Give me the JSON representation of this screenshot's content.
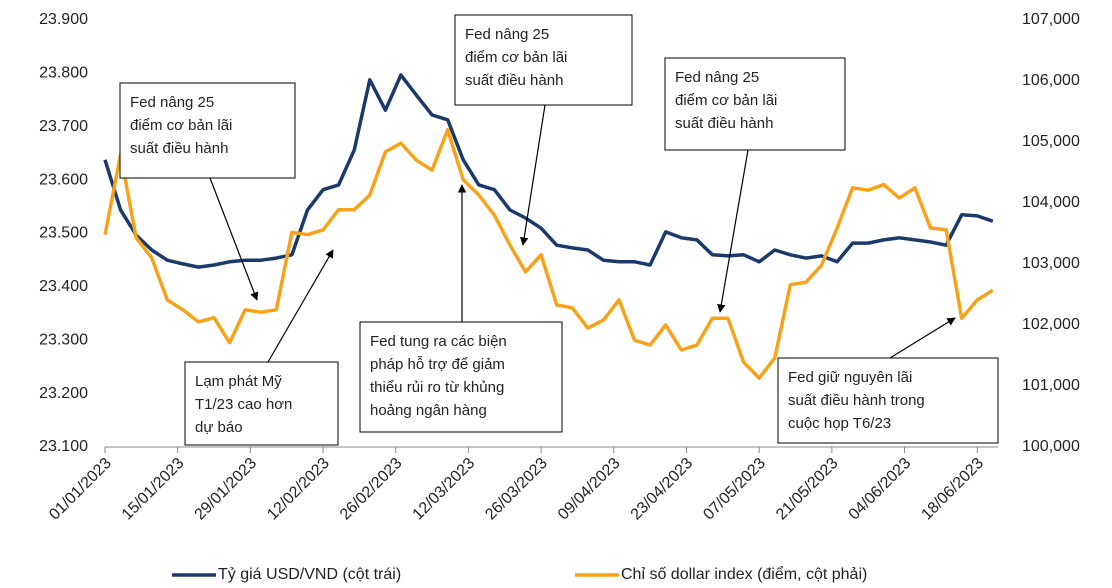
{
  "chart_data": {
    "type": "line",
    "x": [
      "2023-01-01",
      "2023-01-04",
      "2023-01-07",
      "2023-01-10",
      "2023-01-13",
      "2023-01-16",
      "2023-01-19",
      "2023-01-22",
      "2023-01-25",
      "2023-01-28",
      "2023-01-31",
      "2023-02-03",
      "2023-02-06",
      "2023-02-09",
      "2023-02-12",
      "2023-02-15",
      "2023-02-18",
      "2023-02-21",
      "2023-02-24",
      "2023-02-27",
      "2023-03-02",
      "2023-03-05",
      "2023-03-08",
      "2023-03-11",
      "2023-03-14",
      "2023-03-17",
      "2023-03-20",
      "2023-03-23",
      "2023-03-26",
      "2023-03-29",
      "2023-04-01",
      "2023-04-04",
      "2023-04-07",
      "2023-04-10",
      "2023-04-13",
      "2023-04-16",
      "2023-04-19",
      "2023-04-22",
      "2023-04-25",
      "2023-04-28",
      "2023-05-01",
      "2023-05-04",
      "2023-05-07",
      "2023-05-10",
      "2023-05-13",
      "2023-05-16",
      "2023-05-19",
      "2023-05-22",
      "2023-05-25",
      "2023-05-28",
      "2023-05-31",
      "2023-06-03",
      "2023-06-06",
      "2023-06-09",
      "2023-06-12",
      "2023-06-15",
      "2023-06-18",
      "2023-06-21"
    ],
    "series": [
      {
        "name": "Tỷ giá USD/VND (cột trái)",
        "color": "#1b3a6b",
        "axis": "y",
        "values": [
          23.638,
          23.544,
          23.497,
          23.469,
          23.45,
          23.443,
          23.437,
          23.441,
          23.447,
          23.45,
          23.45,
          23.454,
          23.46,
          23.544,
          23.582,
          23.591,
          23.656,
          23.788,
          23.731,
          23.797,
          23.759,
          23.722,
          23.713,
          23.638,
          23.591,
          23.582,
          23.544,
          23.529,
          23.51,
          23.478,
          23.473,
          23.469,
          23.45,
          23.447,
          23.447,
          23.441,
          23.503,
          23.492,
          23.488,
          23.46,
          23.458,
          23.46,
          23.447,
          23.469,
          23.46,
          23.454,
          23.458,
          23.447,
          23.482,
          23.482,
          23.488,
          23.492,
          23.488,
          23.484,
          23.478,
          23.535,
          23.533,
          23.523
        ]
      },
      {
        "name": "Chỉ số dollar index (điểm, cột phải)",
        "color": "#f7a21b",
        "axis": "y2",
        "values": [
          103480,
          104790,
          103430,
          103100,
          102410,
          102250,
          102050,
          102120,
          101710,
          102250,
          102210,
          102250,
          103520,
          103480,
          103560,
          103890,
          103890,
          104130,
          104840,
          104980,
          104700,
          104540,
          105200,
          104380,
          104130,
          103800,
          103310,
          102870,
          103150,
          102330,
          102280,
          101950,
          102080,
          102410,
          101750,
          101670,
          102000,
          101590,
          101670,
          102110,
          102110,
          101390,
          101130,
          101460,
          102660,
          102700,
          102980,
          103590,
          104250,
          104210,
          104300,
          104080,
          104250,
          103590,
          103560,
          102110,
          102410,
          102570
        ]
      }
    ],
    "xlim": [
      "2023-01-01",
      "2023-06-22"
    ],
    "xticks": [
      {
        "value": "2023-01-01",
        "label": "01/01/2023"
      },
      {
        "value": "2023-01-15",
        "label": "15/01/2023"
      },
      {
        "value": "2023-01-29",
        "label": "29/01/2023"
      },
      {
        "value": "2023-02-12",
        "label": "12/02/2023"
      },
      {
        "value": "2023-02-26",
        "label": "26/02/2023"
      },
      {
        "value": "2023-03-12",
        "label": "12/03/2023"
      },
      {
        "value": "2023-03-26",
        "label": "26/03/2023"
      },
      {
        "value": "2023-04-09",
        "label": "09/04/2023"
      },
      {
        "value": "2023-04-23",
        "label": "23/04/2023"
      },
      {
        "value": "2023-05-07",
        "label": "07/05/2023"
      },
      {
        "value": "2023-05-21",
        "label": "21/05/2023"
      },
      {
        "value": "2023-06-04",
        "label": "04/06/2023"
      },
      {
        "value": "2023-06-18",
        "label": "18/06/2023"
      }
    ],
    "ylim": [
      23.1,
      23.9
    ],
    "yticks": [
      {
        "value": 23.1,
        "label": "23.100"
      },
      {
        "value": 23.2,
        "label": "23.200"
      },
      {
        "value": 23.3,
        "label": "23.300"
      },
      {
        "value": 23.4,
        "label": "23.400"
      },
      {
        "value": 23.5,
        "label": "23.500"
      },
      {
        "value": 23.6,
        "label": "23.600"
      },
      {
        "value": 23.7,
        "label": "23.700"
      },
      {
        "value": 23.8,
        "label": "23.800"
      },
      {
        "value": 23.9,
        "label": "23.900"
      }
    ],
    "y2lim": [
      100000,
      107000
    ],
    "y2ticks": [
      {
        "value": 100000,
        "label": "100,000"
      },
      {
        "value": 101000,
        "label": "101,000"
      },
      {
        "value": 102000,
        "label": "102,000"
      },
      {
        "value": 103000,
        "label": "103,000"
      },
      {
        "value": 104000,
        "label": "104,000"
      },
      {
        "value": 105000,
        "label": "105,000"
      },
      {
        "value": 106000,
        "label": "106,000"
      },
      {
        "value": 107000,
        "label": "107,000"
      }
    ],
    "grid": false,
    "legend": "bottom",
    "annotations": [
      {
        "lines": [
          "Fed nâng 25",
          "điểm cơ bản lãi",
          "suất điều hành"
        ]
      },
      {
        "lines": [
          "Fed nâng 25",
          "điểm cơ bản lãi",
          "suất điều hành"
        ]
      },
      {
        "lines": [
          "Fed nâng 25",
          "điểm cơ bản lãi",
          "suất điều hành"
        ]
      },
      {
        "lines": [
          "Lạm phát Mỹ",
          "T1/23 cao hơn",
          "dự báo"
        ]
      },
      {
        "lines": [
          "Fed tung ra các biện",
          "pháp hỗ trợ để giảm",
          "thiểu rủi ro từ khủng",
          "hoảng ngân hàng"
        ]
      },
      {
        "lines": [
          "Fed giữ nguyên lãi",
          "suất điều hành trong",
          "cuộc họp T6/23"
        ]
      }
    ]
  }
}
